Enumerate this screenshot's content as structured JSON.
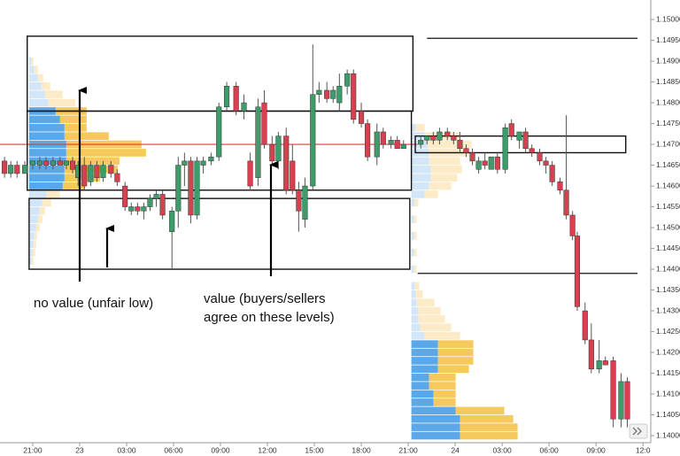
{
  "chart_data": {
    "type": "candlestick",
    "up_color": "#3d9c6a",
    "down_color": "#d6404f",
    "wick_color": "#555555",
    "xlim": [
      -2.09,
      39.5
    ],
    "ylim": [
      1.13983,
      1.15047
    ],
    "xticks": [
      {
        "value": 0,
        "label": "21:00"
      },
      {
        "value": 3,
        "label": "23"
      },
      {
        "value": 6,
        "label": "03:00"
      },
      {
        "value": 9,
        "label": "06:00"
      },
      {
        "value": 12,
        "label": "09:00"
      },
      {
        "value": 15,
        "label": "12:00"
      },
      {
        "value": 18,
        "label": "15:00"
      },
      {
        "value": 21,
        "label": "18:00"
      },
      {
        "value": 24,
        "label": "21:00"
      },
      {
        "value": 27,
        "label": "24"
      },
      {
        "value": 30,
        "label": "03:00"
      },
      {
        "value": 33,
        "label": "06:00"
      },
      {
        "value": 36,
        "label": "09:00"
      },
      {
        "value": 39,
        "label": "12:0"
      }
    ],
    "yticks": [
      {
        "value": 1.14,
        "label": "1.14000"
      },
      {
        "value": 1.1405,
        "label": "1.14050"
      },
      {
        "value": 1.141,
        "label": "1.14100"
      },
      {
        "value": 1.1415,
        "label": "1.14150"
      },
      {
        "value": 1.142,
        "label": "1.14200"
      },
      {
        "value": 1.1425,
        "label": "1.14250"
      },
      {
        "value": 1.143,
        "label": "1.14300"
      },
      {
        "value": 1.1435,
        "label": "1.14350"
      },
      {
        "value": 1.144,
        "label": "1.14400"
      },
      {
        "value": 1.1445,
        "label": "1.14450"
      },
      {
        "value": 1.145,
        "label": "1.14500"
      },
      {
        "value": 1.1455,
        "label": "1.14550"
      },
      {
        "value": 1.146,
        "label": "1.14600"
      },
      {
        "value": 1.1465,
        "label": "1.14650"
      },
      {
        "value": 1.147,
        "label": "1.14700"
      },
      {
        "value": 1.1475,
        "label": "1.14750"
      },
      {
        "value": 1.148,
        "label": "1.14800"
      },
      {
        "value": 1.1485,
        "label": "1.14850"
      },
      {
        "value": 1.149,
        "label": "1.14900"
      },
      {
        "value": 1.1495,
        "label": "1.14950"
      },
      {
        "value": 1.15,
        "label": "1.15000"
      }
    ],
    "price_line": {
      "value": 1.147,
      "x": [
        -2.09,
        24.6
      ],
      "color": "#e53935"
    },
    "zones": [
      {
        "x": [
          -0.35,
          24.3
        ],
        "y": [
          1.1478,
          1.1496
        ]
      },
      {
        "x": [
          -0.35,
          24.2
        ],
        "y": [
          1.1459,
          1.1478
        ]
      },
      {
        "x": [
          -0.23,
          24.1
        ],
        "y": [
          1.144,
          1.1457
        ]
      },
      {
        "x": [
          24.45,
          37.9
        ],
        "y": [
          1.1468,
          1.1472
        ]
      }
    ],
    "levels": [
      {
        "x": [
          25.2,
          38.65
        ],
        "value": 1.14955
      },
      {
        "x": [
          24.6,
          38.65
        ],
        "value": 1.1439
      }
    ],
    "profile_colors": {
      "blue": "#5aa8ea",
      "yellow": "#f6c95c",
      "blue_faded": "#d3e6f8",
      "yellow_faded": "#fdebc7"
    },
    "profiles": [
      {
        "x": -0.23,
        "value_area": [
          1.1459,
          1.1479
        ],
        "levels": [
          1.149,
          1.1488,
          1.1486,
          1.1484,
          1.1482,
          1.148,
          1.1478,
          1.1476,
          1.1474,
          1.1472,
          1.147,
          1.1468,
          1.1466,
          1.1464,
          1.1462,
          1.146,
          1.1458,
          1.1456,
          1.1454,
          1.1452,
          1.145,
          1.1448,
          1.1446,
          1.1444,
          1.1442
        ],
        "blue": [
          3,
          6,
          10,
          14,
          18,
          22,
          30,
          35,
          40,
          40,
          42,
          42,
          42,
          40,
          40,
          38,
          20,
          15,
          12,
          10,
          8,
          6,
          5,
          4,
          3
        ],
        "yellow": [
          2,
          4,
          6,
          10,
          20,
          30,
          35,
          30,
          25,
          50,
          85,
          90,
          60,
          60,
          40,
          25,
          15,
          10,
          6,
          5,
          4,
          3,
          3,
          3,
          2
        ]
      },
      {
        "x": 24.2,
        "value_area": [
          1.1399,
          1.1423
        ],
        "levels": [
          1.1474,
          1.1472,
          1.147,
          1.1468,
          1.1466,
          1.1464,
          1.1462,
          1.146,
          1.1458,
          1.1456,
          1.1452,
          1.1448,
          1.1444,
          1.144,
          1.1436,
          1.1434,
          1.1432,
          1.143,
          1.1428,
          1.1426,
          1.1424,
          1.1422,
          1.142,
          1.1418,
          1.1416,
          1.1414,
          1.1412,
          1.141,
          1.1408,
          1.1406,
          1.1404,
          1.1402,
          1.14
        ],
        "blue": [
          5,
          15,
          18,
          20,
          20,
          22,
          22,
          20,
          15,
          4,
          3,
          3,
          3,
          3,
          4,
          5,
          6,
          8,
          8,
          10,
          15,
          30,
          30,
          30,
          30,
          20,
          20,
          25,
          25,
          50,
          55,
          55,
          55
        ],
        "yellow": [
          10,
          40,
          50,
          45,
          35,
          35,
          30,
          25,
          15,
          4,
          3,
          3,
          3,
          3,
          5,
          8,
          20,
          25,
          30,
          35,
          40,
          40,
          40,
          40,
          35,
          30,
          30,
          25,
          25,
          55,
          60,
          65,
          65
        ]
      }
    ],
    "annotations": [
      "no value (unfair low)",
      "value (buyers/sellers",
      "agree on these levels)"
    ],
    "candles": [
      {
        "x": -1.8,
        "open": 1.1466,
        "high": 1.1467,
        "low": 1.1462,
        "close": 1.1463
      },
      {
        "x": -1.4,
        "open": 1.1463,
        "high": 1.1466,
        "low": 1.1462,
        "close": 1.1465
      },
      {
        "x": -1.0,
        "open": 1.1465,
        "high": 1.1466,
        "low": 1.1462,
        "close": 1.1463
      },
      {
        "x": -0.5,
        "open": 1.1463,
        "high": 1.1466,
        "low": 1.1463,
        "close": 1.1465
      },
      {
        "x": 0,
        "open": 1.1465,
        "high": 1.1466,
        "low": 1.1464,
        "close": 1.1466
      },
      {
        "x": 0.45,
        "open": 1.1465,
        "high": 1.1467,
        "low": 1.1464,
        "close": 1.1466
      },
      {
        "x": 0.85,
        "open": 1.1466,
        "high": 1.1467,
        "low": 1.1464,
        "close": 1.1465
      },
      {
        "x": 1.3,
        "open": 1.1465,
        "high": 1.1467,
        "low": 1.1464,
        "close": 1.1466
      },
      {
        "x": 1.75,
        "open": 1.1466,
        "high": 1.1467,
        "low": 1.1465,
        "close": 1.1465
      },
      {
        "x": 2.15,
        "open": 1.1465,
        "high": 1.1466,
        "low": 1.1464,
        "close": 1.1466
      },
      {
        "x": 2.55,
        "open": 1.1466,
        "high": 1.1467,
        "low": 1.1463,
        "close": 1.1464
      },
      {
        "x": 2.9,
        "open": 1.1462,
        "high": 1.1466,
        "low": 1.146,
        "close": 1.1465
      },
      {
        "x": 3.3,
        "open": 1.1465,
        "high": 1.1467,
        "low": 1.1459,
        "close": 1.146
      },
      {
        "x": 3.7,
        "open": 1.1461,
        "high": 1.1466,
        "low": 1.146,
        "close": 1.1465
      },
      {
        "x": 4.1,
        "open": 1.1465,
        "high": 1.1466,
        "low": 1.1461,
        "close": 1.1462
      },
      {
        "x": 4.5,
        "open": 1.1462,
        "high": 1.1466,
        "low": 1.1461,
        "close": 1.1465
      },
      {
        "x": 5.0,
        "open": 1.1465,
        "high": 1.1466,
        "low": 1.1462,
        "close": 1.1463
      },
      {
        "x": 5.4,
        "open": 1.1463,
        "high": 1.1464,
        "low": 1.146,
        "close": 1.1461
      },
      {
        "x": 5.9,
        "open": 1.146,
        "high": 1.1461,
        "low": 1.1454,
        "close": 1.1455
      },
      {
        "x": 6.3,
        "open": 1.1454,
        "high": 1.1456,
        "low": 1.1453,
        "close": 1.1455
      },
      {
        "x": 6.7,
        "open": 1.1455,
        "high": 1.1456,
        "low": 1.1453,
        "close": 1.1454
      },
      {
        "x": 7.1,
        "open": 1.1454,
        "high": 1.1456,
        "low": 1.1452,
        "close": 1.1455
      },
      {
        "x": 7.5,
        "open": 1.1455,
        "high": 1.1458,
        "low": 1.1454,
        "close": 1.1457
      },
      {
        "x": 7.9,
        "open": 1.1457,
        "high": 1.1459,
        "low": 1.1455,
        "close": 1.1458
      },
      {
        "x": 8.3,
        "open": 1.1458,
        "high": 1.1459,
        "low": 1.1452,
        "close": 1.1453
      },
      {
        "x": 8.9,
        "open": 1.1449,
        "high": 1.1455,
        "low": 1.144,
        "close": 1.1454
      },
      {
        "x": 9.3,
        "open": 1.1454,
        "high": 1.1467,
        "low": 1.145,
        "close": 1.1465
      },
      {
        "x": 9.7,
        "open": 1.1465,
        "high": 1.1468,
        "low": 1.146,
        "close": 1.1466
      },
      {
        "x": 10.1,
        "open": 1.1466,
        "high": 1.1467,
        "low": 1.1451,
        "close": 1.1453
      },
      {
        "x": 10.5,
        "open": 1.1453,
        "high": 1.1467,
        "low": 1.1452,
        "close": 1.1466
      },
      {
        "x": 10.9,
        "open": 1.1465,
        "high": 1.1467,
        "low": 1.1463,
        "close": 1.1466
      },
      {
        "x": 11.4,
        "open": 1.1466,
        "high": 1.1468,
        "low": 1.1465,
        "close": 1.1467
      },
      {
        "x": 11.9,
        "open": 1.1467,
        "high": 1.148,
        "low": 1.1466,
        "close": 1.1479
      },
      {
        "x": 12.4,
        "open": 1.1479,
        "high": 1.1485,
        "low": 1.1478,
        "close": 1.1484
      },
      {
        "x": 13.0,
        "open": 1.1484,
        "high": 1.1485,
        "low": 1.1477,
        "close": 1.1478
      },
      {
        "x": 13.5,
        "open": 1.1478,
        "high": 1.1482,
        "low": 1.1476,
        "close": 1.148
      },
      {
        "x": 13.9,
        "open": 1.1466,
        "high": 1.1468,
        "low": 1.1459,
        "close": 1.146
      },
      {
        "x": 14.4,
        "open": 1.1462,
        "high": 1.1481,
        "low": 1.146,
        "close": 1.1479
      },
      {
        "x": 14.8,
        "open": 1.148,
        "high": 1.1483,
        "low": 1.1469,
        "close": 1.147
      },
      {
        "x": 15.3,
        "open": 1.147,
        "high": 1.1472,
        "low": 1.1465,
        "close": 1.1466
      },
      {
        "x": 15.7,
        "open": 1.1466,
        "high": 1.1473,
        "low": 1.1464,
        "close": 1.1472
      },
      {
        "x": 16.2,
        "open": 1.1472,
        "high": 1.1474,
        "low": 1.1458,
        "close": 1.1459
      },
      {
        "x": 16.6,
        "open": 1.1466,
        "high": 1.147,
        "low": 1.1458,
        "close": 1.1459
      },
      {
        "x": 17.0,
        "open": 1.1459,
        "high": 1.1461,
        "low": 1.1449,
        "close": 1.1454
      },
      {
        "x": 17.4,
        "open": 1.1452,
        "high": 1.1462,
        "low": 1.145,
        "close": 1.146
      },
      {
        "x": 17.9,
        "open": 1.146,
        "high": 1.1494,
        "low": 1.1459,
        "close": 1.1482
      },
      {
        "x": 18.3,
        "open": 1.1482,
        "high": 1.1485,
        "low": 1.148,
        "close": 1.1483
      },
      {
        "x": 18.8,
        "open": 1.1483,
        "high": 1.1485,
        "low": 1.148,
        "close": 1.1481
      },
      {
        "x": 19.2,
        "open": 1.1481,
        "high": 1.1484,
        "low": 1.148,
        "close": 1.1483
      },
      {
        "x": 19.6,
        "open": 1.148,
        "high": 1.1487,
        "low": 1.1478,
        "close": 1.1484
      },
      {
        "x": 20.1,
        "open": 1.1484,
        "high": 1.1488,
        "low": 1.1482,
        "close": 1.1487
      },
      {
        "x": 20.5,
        "open": 1.1487,
        "high": 1.1488,
        "low": 1.1475,
        "close": 1.1476
      },
      {
        "x": 21.0,
        "open": 1.1478,
        "high": 1.148,
        "low": 1.1474,
        "close": 1.1475
      },
      {
        "x": 21.4,
        "open": 1.1475,
        "high": 1.1476,
        "low": 1.1466,
        "close": 1.1467
      },
      {
        "x": 22.0,
        "open": 1.1467,
        "high": 1.1475,
        "low": 1.1465,
        "close": 1.1473
      },
      {
        "x": 22.4,
        "open": 1.1473,
        "high": 1.1474,
        "low": 1.1469,
        "close": 1.147
      },
      {
        "x": 22.9,
        "open": 1.147,
        "high": 1.1472,
        "low": 1.1469,
        "close": 1.1471
      },
      {
        "x": 23.3,
        "open": 1.1471,
        "high": 1.1472,
        "low": 1.1469,
        "close": 1.1469
      },
      {
        "x": 23.7,
        "open": 1.1469,
        "high": 1.1471,
        "low": 1.1469,
        "close": 1.147
      },
      {
        "x": 24.8,
        "open": 1.147,
        "high": 1.1472,
        "low": 1.1469,
        "close": 1.1471
      },
      {
        "x": 25.2,
        "open": 1.1471,
        "high": 1.1472,
        "low": 1.147,
        "close": 1.1472
      },
      {
        "x": 25.6,
        "open": 1.1472,
        "high": 1.1473,
        "low": 1.147,
        "close": 1.1471
      },
      {
        "x": 26.0,
        "open": 1.1471,
        "high": 1.1474,
        "low": 1.147,
        "close": 1.1473
      },
      {
        "x": 26.5,
        "open": 1.1473,
        "high": 1.1474,
        "low": 1.1471,
        "close": 1.1472
      },
      {
        "x": 26.9,
        "open": 1.1472,
        "high": 1.1473,
        "low": 1.147,
        "close": 1.1471
      },
      {
        "x": 27.3,
        "open": 1.1471,
        "high": 1.1473,
        "low": 1.1468,
        "close": 1.1469
      },
      {
        "x": 27.7,
        "open": 1.1469,
        "high": 1.147,
        "low": 1.1467,
        "close": 1.1468
      },
      {
        "x": 28.1,
        "open": 1.1468,
        "high": 1.1469,
        "low": 1.1465,
        "close": 1.1466
      },
      {
        "x": 28.5,
        "open": 1.1464,
        "high": 1.1467,
        "low": 1.1463,
        "close": 1.1466
      },
      {
        "x": 28.9,
        "open": 1.1466,
        "high": 1.1468,
        "low": 1.1464,
        "close": 1.1465
      },
      {
        "x": 29.3,
        "open": 1.1464,
        "high": 1.1467,
        "low": 1.1464,
        "close": 1.1467
      },
      {
        "x": 29.7,
        "open": 1.1467,
        "high": 1.1468,
        "low": 1.1463,
        "close": 1.1464
      },
      {
        "x": 30.2,
        "open": 1.1464,
        "high": 1.1475,
        "low": 1.1463,
        "close": 1.1474
      },
      {
        "x": 30.6,
        "open": 1.1475,
        "high": 1.1476,
        "low": 1.1471,
        "close": 1.1472
      },
      {
        "x": 31.1,
        "open": 1.1471,
        "high": 1.1473,
        "low": 1.1469,
        "close": 1.1473
      },
      {
        "x": 31.5,
        "open": 1.1473,
        "high": 1.1474,
        "low": 1.1468,
        "close": 1.1469
      },
      {
        "x": 31.9,
        "open": 1.1469,
        "high": 1.147,
        "low": 1.1467,
        "close": 1.1468
      },
      {
        "x": 32.4,
        "open": 1.1468,
        "high": 1.1469,
        "low": 1.1465,
        "close": 1.1466
      },
      {
        "x": 32.8,
        "open": 1.1466,
        "high": 1.1467,
        "low": 1.1463,
        "close": 1.1465
      },
      {
        "x": 33.2,
        "open": 1.1465,
        "high": 1.1466,
        "low": 1.146,
        "close": 1.1461
      },
      {
        "x": 33.7,
        "open": 1.1461,
        "high": 1.1462,
        "low": 1.1458,
        "close": 1.1459
      },
      {
        "x": 34.1,
        "open": 1.1459,
        "high": 1.1477,
        "low": 1.1452,
        "close": 1.1453
      },
      {
        "x": 34.5,
        "open": 1.1453,
        "high": 1.1454,
        "low": 1.1447,
        "close": 1.1448
      },
      {
        "x": 34.8,
        "open": 1.1448,
        "high": 1.1449,
        "low": 1.143,
        "close": 1.1431
      },
      {
        "x": 35.3,
        "open": 1.143,
        "high": 1.1432,
        "low": 1.1422,
        "close": 1.1423
      },
      {
        "x": 35.7,
        "open": 1.1423,
        "high": 1.1427,
        "low": 1.1415,
        "close": 1.1416
      },
      {
        "x": 36.2,
        "open": 1.1416,
        "high": 1.1423,
        "low": 1.1415,
        "close": 1.1418
      },
      {
        "x": 36.6,
        "open": 1.1418,
        "high": 1.1419,
        "low": 1.1417,
        "close": 1.1417
      },
      {
        "x": 37.1,
        "open": 1.1418,
        "high": 1.1419,
        "low": 1.1402,
        "close": 1.1404
      },
      {
        "x": 37.6,
        "open": 1.1404,
        "high": 1.1415,
        "low": 1.1402,
        "close": 1.1413
      },
      {
        "x": 38.0,
        "open": 1.1413,
        "high": 1.1414,
        "low": 1.1402,
        "close": 1.1404
      }
    ]
  }
}
